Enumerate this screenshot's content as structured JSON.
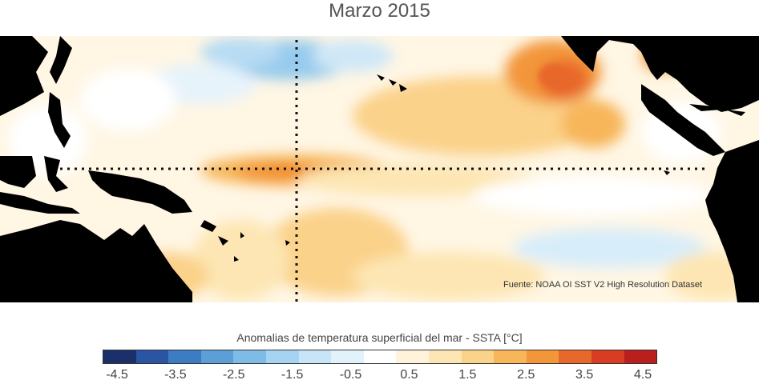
{
  "title": "Marzo 2015",
  "source": "Fuente: NOAA OI SST V2 High Resolution Dataset",
  "colorbar": {
    "title": "Anomalias de temperatura superficial del mar - SSTA  [°C]",
    "colors": [
      "#1b2f6b",
      "#2a55a3",
      "#3d7cc2",
      "#5b9fd6",
      "#7ebbe6",
      "#a4d4f2",
      "#c7e5f7",
      "#e2f2fb",
      "#ffffff",
      "#fff3dc",
      "#fde6b3",
      "#fbd28a",
      "#f7b65a",
      "#f3963a",
      "#e8682c",
      "#d83c23",
      "#b81f1d"
    ],
    "ticks": [
      "-4.5",
      "-3.5",
      "-2.5",
      "-1.5",
      "-0.5",
      "0.5",
      "1.5",
      "2.5",
      "3.5",
      "4.5"
    ]
  },
  "colors": {
    "land": "#000000",
    "ocean_neutral": "#fff7e8",
    "warm": "#f7b65a",
    "cool": "#a4d4f2",
    "dotted_line": "#111111"
  }
}
